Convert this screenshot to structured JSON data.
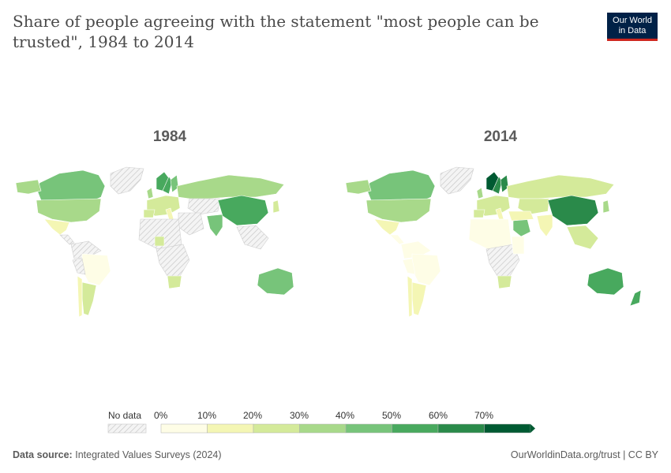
{
  "title": "Share of people agreeing with the statement \"most people can be trusted\", 1984 to 2014",
  "logo": {
    "line1": "Our World",
    "line2": "in Data"
  },
  "panels": [
    {
      "year": "1984"
    },
    {
      "year": "2014"
    }
  ],
  "legend": {
    "no_data_label": "No data",
    "bins": [
      {
        "label": "0%",
        "color": "#fefde6"
      },
      {
        "label": "10%",
        "color": "#f4f6b4"
      },
      {
        "label": "20%",
        "color": "#d4ea9a"
      },
      {
        "label": "30%",
        "color": "#a8d98a"
      },
      {
        "label": "40%",
        "color": "#77c47a"
      },
      {
        "label": "50%",
        "color": "#48a95e"
      },
      {
        "label": "60%",
        "color": "#2a8a4a"
      },
      {
        "label": "70%",
        "color": "#005a32"
      }
    ]
  },
  "footer": {
    "source_label": "Data source:",
    "source_text": "Integrated Values Surveys (2024)",
    "right_text": "OurWorldinData.org/trust | CC BY"
  },
  "colors": {
    "no_data": "#e8e8e8",
    "background": "#ffffff",
    "title": "#4a4a4a"
  }
}
